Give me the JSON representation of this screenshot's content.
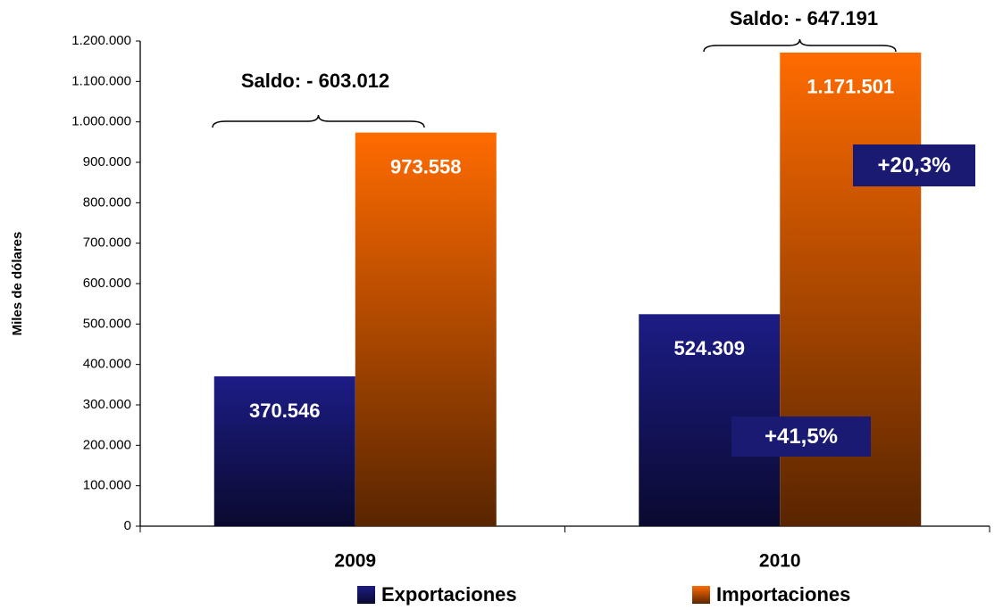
{
  "chart_data": {
    "type": "bar",
    "y_label": "Miles de dólares",
    "categories": [
      "2009",
      "2010"
    ],
    "series": [
      {
        "name": "Exportaciones",
        "color": "#1c1c86",
        "values": [
          370546,
          524309
        ],
        "value_labels": [
          "370.546",
          "524.309"
        ]
      },
      {
        "name": "Importaciones",
        "color": "#ff6b00",
        "values": [
          973558,
          1171501
        ],
        "value_labels": [
          "973.558",
          "1.171.501"
        ]
      }
    ],
    "ylim": [
      0,
      1200000
    ],
    "yticks": [
      0,
      {
        "value": 100000,
        "label": "100.000"
      },
      {
        "value": 200000,
        "label": "200.000"
      },
      {
        "value": 300000,
        "label": "300.000"
      },
      {
        "value": 400000,
        "label": "400.000"
      },
      {
        "value": 500000,
        "label": "500.000"
      },
      {
        "value": 600000,
        "label": "600.000"
      },
      {
        "value": 700000,
        "label": "700.000"
      },
      {
        "value": 800000,
        "label": "800.000"
      },
      {
        "value": 900000,
        "label": "900.000"
      },
      {
        "value": 1000000,
        "label": "1.000.000"
      },
      {
        "value": 1100000,
        "label": "1.100.000"
      },
      {
        "value": 1200000,
        "label": "1.200.000"
      }
    ],
    "annotations": [
      {
        "text": "Saldo: - 603.012"
      },
      {
        "text": "Saldo: - 647.191"
      },
      {
        "text": "+41,5%"
      },
      {
        "text": "+20,3%"
      }
    ],
    "grid": false,
    "legend": "bottom"
  }
}
